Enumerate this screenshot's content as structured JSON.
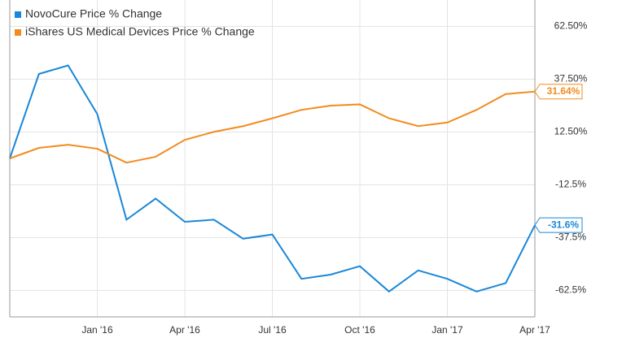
{
  "chart_data": {
    "type": "line",
    "x": [
      "2015-10",
      "2015-11",
      "2015-12",
      "2016-01",
      "2016-02",
      "2016-03",
      "2016-04",
      "2016-05",
      "2016-06",
      "2016-07",
      "2016-08",
      "2016-09",
      "2016-10",
      "2016-11",
      "2016-12",
      "2017-01",
      "2017-02",
      "2017-03",
      "2017-04"
    ],
    "series": [
      {
        "name": "NovoCure Price % Change",
        "color": "#1a87d8",
        "values": [
          0,
          40,
          44,
          21,
          -29,
          -19,
          -30,
          -29,
          -38,
          -36,
          -57,
          -55,
          -51,
          -63,
          -53,
          -57,
          -63,
          -59,
          -31.6
        ],
        "end_label": "-31.6%"
      },
      {
        "name": "iShares US Medical Devices Price % Change",
        "color": "#f28c1e",
        "values": [
          0,
          5,
          6.5,
          4.6,
          -2,
          0.8,
          8.8,
          12.6,
          15.3,
          19,
          23,
          25,
          25.6,
          19,
          15.3,
          17,
          23,
          30.5,
          31.64
        ],
        "end_label": "31.64%"
      }
    ],
    "xlim": [
      "2015-10",
      "2017-04"
    ],
    "xticks": [
      {
        "value": "2016-01",
        "label": "Jan '16"
      },
      {
        "value": "2016-04",
        "label": "Apr '16"
      },
      {
        "value": "2016-07",
        "label": "Jul '16"
      },
      {
        "value": "2016-10",
        "label": "Oct '16"
      },
      {
        "value": "2017-01",
        "label": "Jan '17"
      },
      {
        "value": "2017-04",
        "label": "Apr '17"
      }
    ],
    "ylim": [
      -75,
      75
    ],
    "yticks": [
      {
        "value": 62.5,
        "label": "62.50%"
      },
      {
        "value": 37.5,
        "label": "37.50%"
      },
      {
        "value": 12.5,
        "label": "12.50%"
      },
      {
        "value": -12.5,
        "label": "-12.5%"
      },
      {
        "value": -37.5,
        "label": "-37.5%"
      },
      {
        "value": -62.5,
        "label": "-62.5%"
      }
    ],
    "grid": true,
    "legend": "top-left"
  }
}
